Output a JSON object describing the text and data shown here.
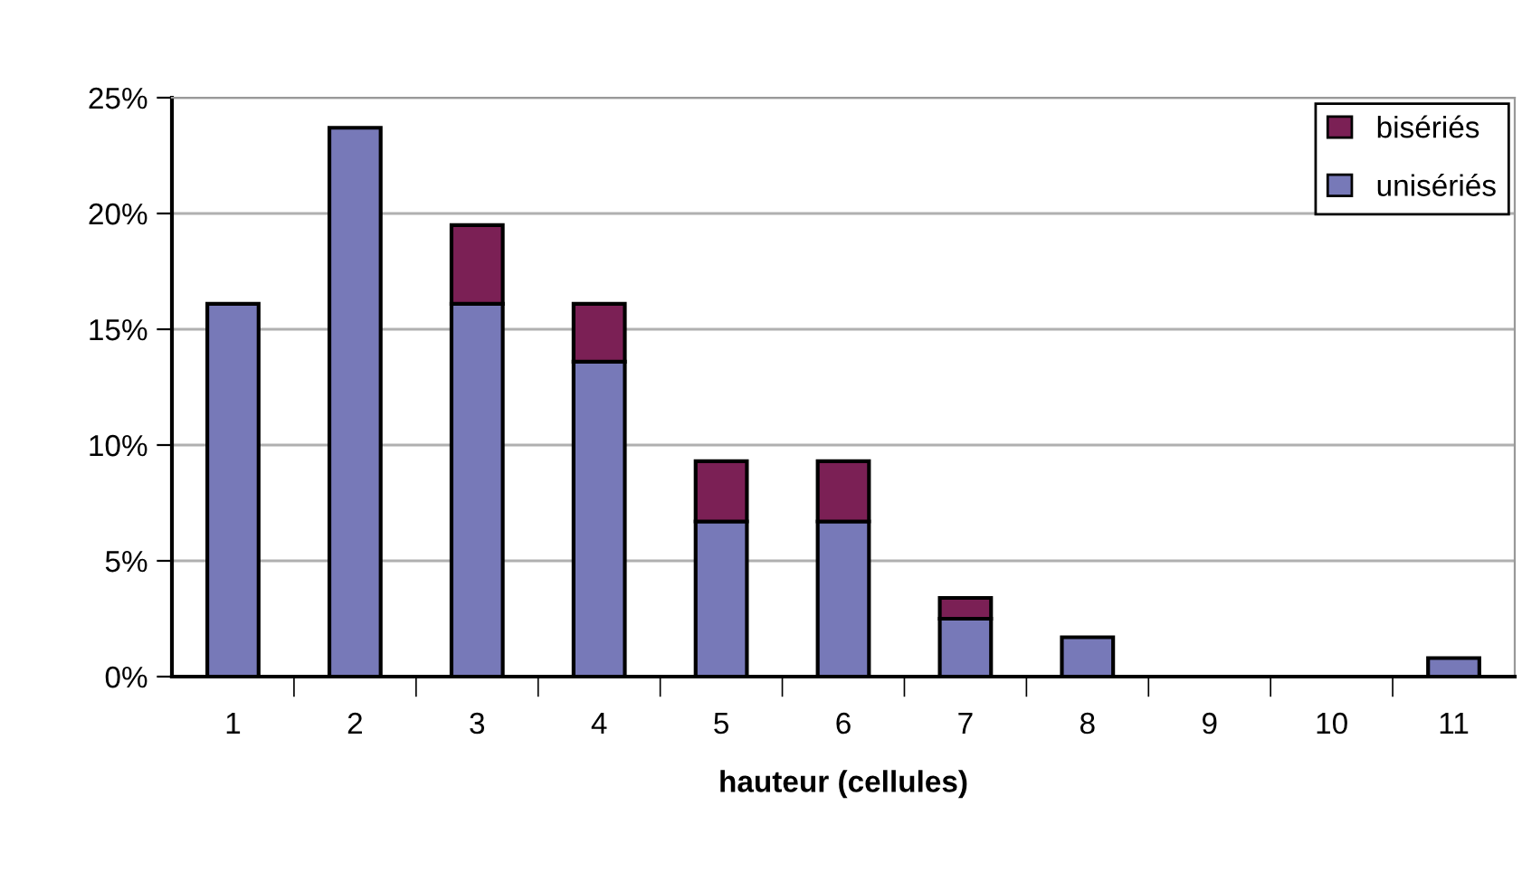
{
  "chart_data": {
    "type": "bar",
    "stacked": true,
    "xlabel": "hauteur (cellules)",
    "categories": [
      "1",
      "2",
      "3",
      "4",
      "5",
      "6",
      "7",
      "8",
      "9",
      "10",
      "11"
    ],
    "series": [
      {
        "name": "unisériés",
        "color": "#7779b8",
        "values": [
          16.1,
          23.7,
          16.1,
          13.6,
          6.7,
          6.7,
          2.5,
          1.7,
          0,
          0,
          0.8
        ]
      },
      {
        "name": "bisériés",
        "color": "#7b2055",
        "values": [
          0,
          0,
          3.4,
          2.5,
          2.6,
          2.6,
          0.9,
          0,
          0,
          0,
          0
        ]
      }
    ],
    "ylim": [
      0,
      25
    ],
    "yticks": [
      {
        "value": 0,
        "label": "0%"
      },
      {
        "value": 5,
        "label": "5%"
      },
      {
        "value": 10,
        "label": "10%"
      },
      {
        "value": 15,
        "label": "15%"
      },
      {
        "value": 20,
        "label": "20%"
      },
      {
        "value": 25,
        "label": "25%"
      }
    ],
    "grid": "y",
    "legend": "top right"
  }
}
